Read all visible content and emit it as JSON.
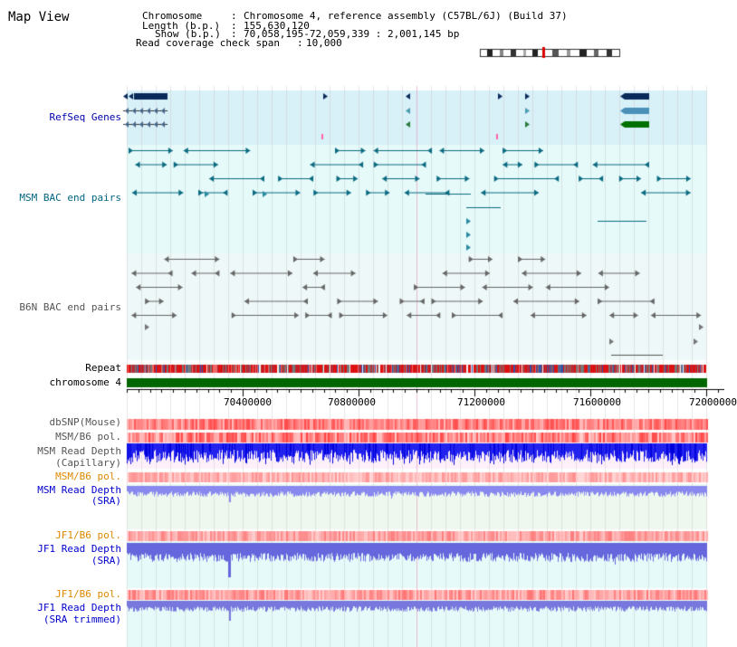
{
  "page": {
    "title": "Map View"
  },
  "header": {
    "chromosome_key": "Chromosome",
    "chromosome_value": "Chromosome 4, reference assembly (C57BL/6J) (Build 37)",
    "length_key": "Length (b.p.)",
    "length_value": "155,630,120",
    "show_key": "Show (b.p.)",
    "show_value": "70,058,195-72,059,339 : 2,001,145 bp",
    "coverage_key": "Read coverage check span",
    "coverage_value": "10,000"
  },
  "tracks": {
    "refseq": "RefSeq Genes",
    "msm_bac": "MSM BAC end pairs",
    "b6n_bac": "B6N BAC end pairs",
    "repeat": "Repeat",
    "chromosome": "chromosome 4",
    "dbsnp": "dbSNP(Mouse)",
    "msm_b6_pol_1": "MSM/B6 pol.",
    "msm_depth_cap_1": "MSM Read Depth",
    "msm_depth_cap_2": "(Capillary)",
    "msm_b6_pol_2": "MSM/B6 pol.",
    "msm_depth_sra_1": "MSM Read Depth",
    "msm_depth_sra_2": "(SRA)",
    "jf1_b6_pol_1": "JF1/B6 pol.",
    "jf1_depth_sra_1": "JF1 Read Depth",
    "jf1_depth_sra_2": "(SRA)",
    "jf1_b6_pol_2": "JF1/B6 pol.",
    "jf1_depth_trim_1": "JF1 Read Depth",
    "jf1_depth_trim_2": "(SRA trimmed)"
  },
  "axis": {
    "ticks": [
      "70400000",
      "70800000",
      "71200000",
      "71600000",
      "72000000"
    ]
  },
  "colors": {
    "refseq_label": "#0000aa",
    "msm_label": "#006680",
    "b6n_label": "#555555",
    "pol_orange": "#dd8800",
    "depth_blue": "#0000cc",
    "chromosome_bar": "#006600"
  }
}
